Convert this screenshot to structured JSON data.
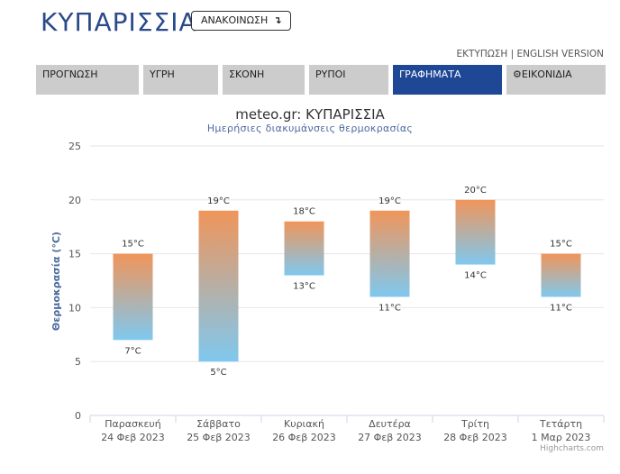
{
  "header": {
    "title": "ΚΥΠΑΡΙΣΣΙΑ",
    "announce_label": "ΑΝΑΚΟΙΝΩΣΗ",
    "announce_icon": "arrow-turn-down-icon"
  },
  "top_links": {
    "print": "ΕΚΤΥΠΩΣΗ",
    "separator": " | ",
    "english": "ENGLISH VERSION"
  },
  "nav": {
    "tabs": [
      {
        "label": "ΠΡΟΓΝΩΣΗ"
      },
      {
        "label": "ΥΓΡΗ"
      },
      {
        "label": "ΣΚΟΝΗ"
      },
      {
        "label": "ΡΥΠΟΙ"
      },
      {
        "label": "ΓΡΑΦΗΜΑΤΑ"
      },
      {
        "label": "ΕΙΚΟΝΙΔΙΑ",
        "icon": "gear-icon"
      }
    ],
    "active_tab": "ΓΡΑΦΗΜΑΤΑ"
  },
  "chart_data": {
    "type": "bar",
    "subtype": "columnrange",
    "title": "meteo.gr: ΚΥΠΑΡΙΣΣΙΑ",
    "subtitle": "Ημερήσιες διακυμάνσεις θερμοκρασίας",
    "ylabel": "Θερμοκρασία (°C)",
    "ylim": [
      0,
      25
    ],
    "yticks": [
      0,
      5,
      10,
      15,
      20,
      25
    ],
    "grid": true,
    "categories": [
      [
        "Παρασκευή",
        "24 Φεβ 2023"
      ],
      [
        "Σάββατο",
        "25 Φεβ 2023"
      ],
      [
        "Κυριακή",
        "26 Φεβ 2023"
      ],
      [
        "Δευτέρα",
        "27 Φεβ 2023"
      ],
      [
        "Τρίτη",
        "28 Φεβ 2023"
      ],
      [
        "Τετάρτη",
        "1 Μαρ 2023"
      ]
    ],
    "series": [
      {
        "low": [
          7,
          5,
          13,
          11,
          14,
          11
        ],
        "high": [
          15,
          19,
          18,
          19,
          20,
          15
        ]
      }
    ],
    "unit": "°C",
    "colors": {
      "high": "#f0955a",
      "low": "#7fc8ef"
    }
  },
  "credits": "Highcharts.com"
}
